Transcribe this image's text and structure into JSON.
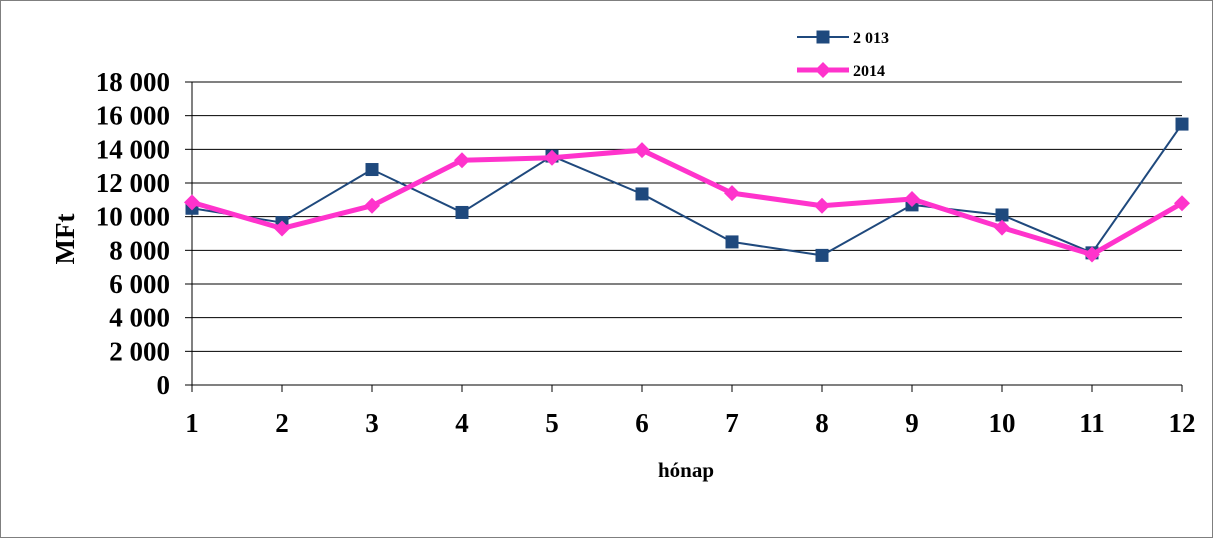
{
  "chart_data": {
    "type": "line",
    "title": "",
    "xlabel": "hónap",
    "ylabel": "MFt",
    "x": [
      1,
      2,
      3,
      4,
      5,
      6,
      7,
      8,
      9,
      10,
      11,
      12
    ],
    "x_tick_labels": [
      "1",
      "2",
      "3",
      "4",
      "5",
      "6",
      "7",
      "8",
      "9",
      "10",
      "11",
      "12"
    ],
    "ylim": [
      0,
      18000
    ],
    "y_ticks": [
      0,
      2000,
      4000,
      6000,
      8000,
      10000,
      12000,
      14000,
      16000,
      18000
    ],
    "y_tick_labels": [
      "0",
      "2 000",
      "4 000",
      "6 000",
      "8 000",
      "10 000",
      "12 000",
      "14 000",
      "16 000",
      "18 000"
    ],
    "grid": true,
    "legend_position": "top-right",
    "series": [
      {
        "name": "2 013",
        "color": "#1f497d",
        "marker": "square",
        "values": [
          10500,
          9650,
          12800,
          10250,
          13600,
          11350,
          8500,
          7700,
          10700,
          10100,
          7850,
          15500
        ]
      },
      {
        "name": "2014",
        "color": "#ff33cc",
        "marker": "diamond",
        "values": [
          10850,
          9300,
          10650,
          13350,
          13500,
          13950,
          11400,
          10650,
          11050,
          9350,
          7750,
          10800
        ]
      }
    ]
  }
}
